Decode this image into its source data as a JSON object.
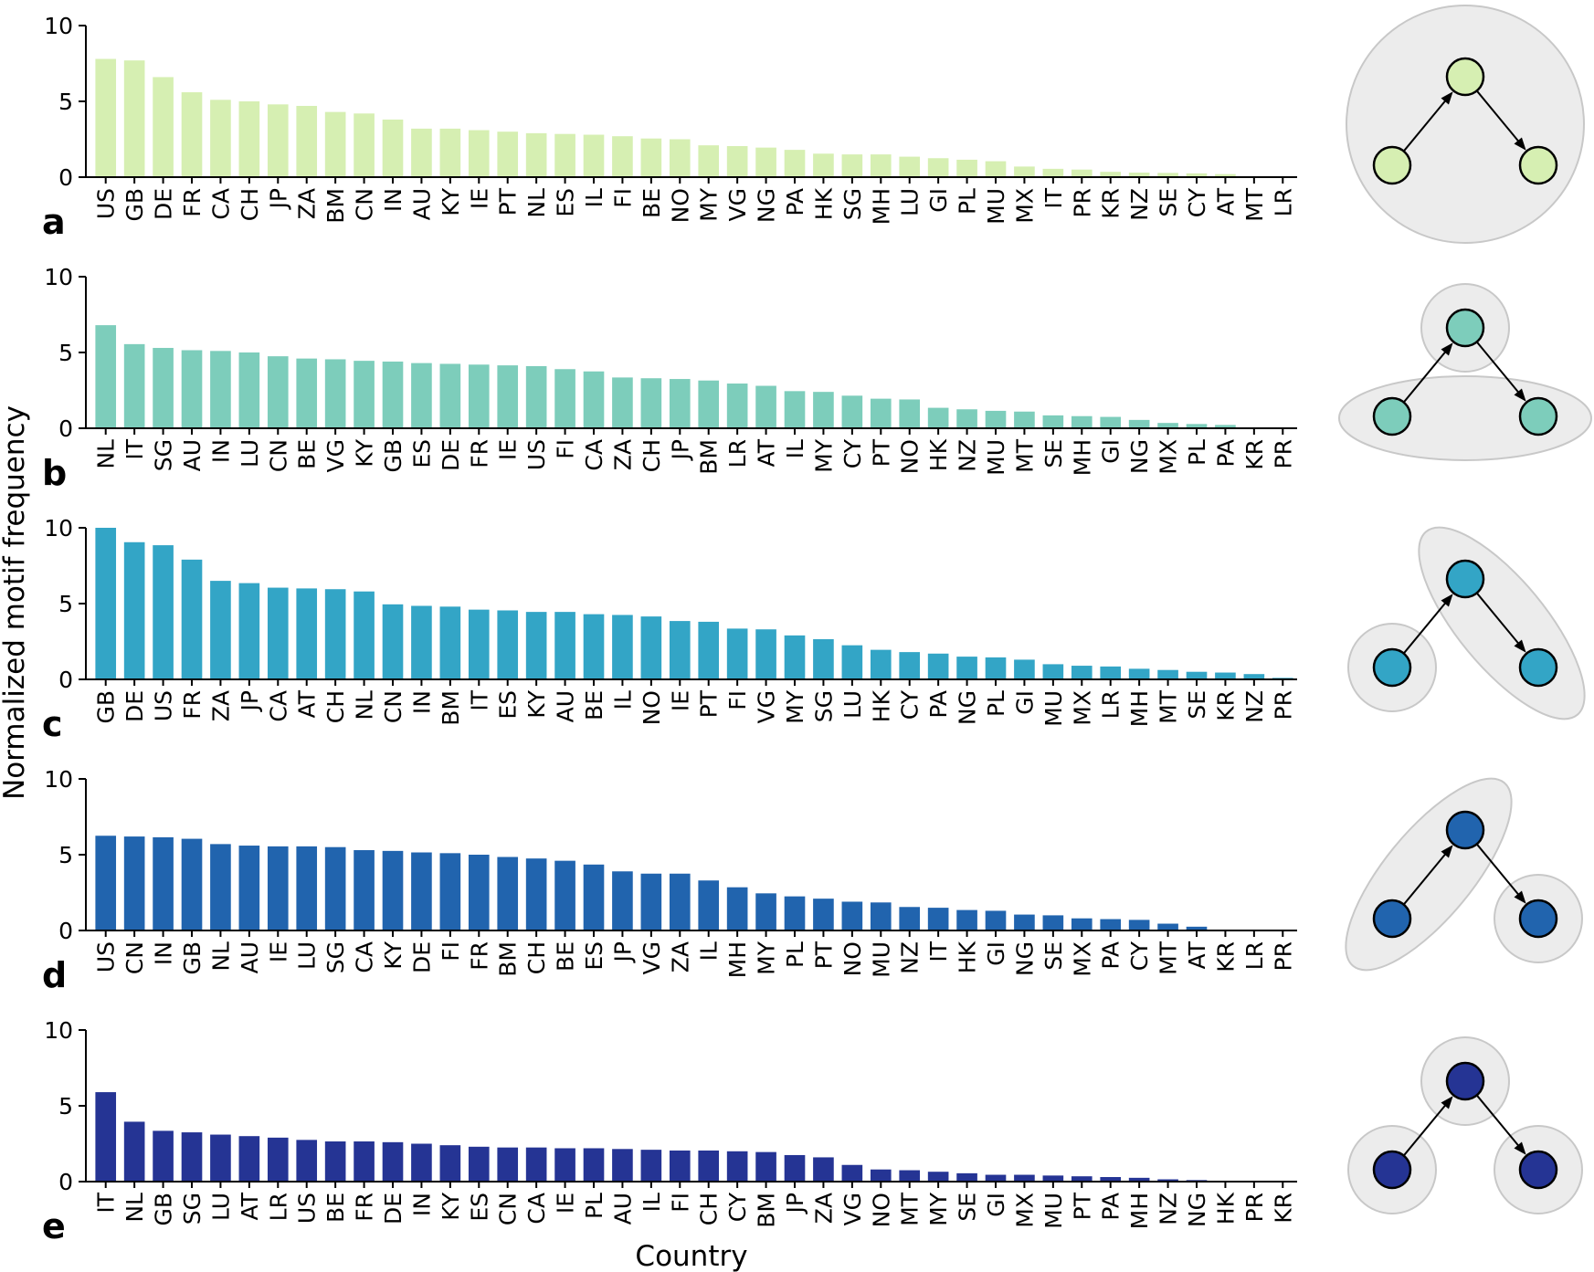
{
  "figure": {
    "ylabel": "Normalized motif frequency",
    "xlabel": "Country"
  },
  "chart_data": [
    {
      "type": "bar",
      "panel": "a",
      "color": "#d6efb2",
      "motif": "star-single-group",
      "ylim": [
        0,
        10
      ],
      "yticks": [
        "0",
        "5",
        "10"
      ],
      "categories": [
        "US",
        "GB",
        "DE",
        "FR",
        "CA",
        "CH",
        "JP",
        "ZA",
        "BM",
        "CN",
        "IN",
        "AU",
        "KY",
        "IE",
        "PT",
        "NL",
        "ES",
        "IL",
        "FI",
        "BE",
        "NO",
        "MY",
        "VG",
        "NG",
        "PA",
        "HK",
        "SG",
        "MH",
        "LU",
        "GI",
        "PL",
        "MU",
        "MX",
        "IT",
        "PR",
        "KR",
        "NZ",
        "SE",
        "CY",
        "AT",
        "MT",
        "LR"
      ],
      "values": [
        7.8,
        7.7,
        6.6,
        5.6,
        5.1,
        5.0,
        4.8,
        4.7,
        4.3,
        4.2,
        3.8,
        3.2,
        3.2,
        3.1,
        3.0,
        2.9,
        2.85,
        2.8,
        2.7,
        2.55,
        2.5,
        2.1,
        2.05,
        1.95,
        1.8,
        1.55,
        1.5,
        1.5,
        1.35,
        1.25,
        1.15,
        1.05,
        0.7,
        0.55,
        0.5,
        0.35,
        0.3,
        0.28,
        0.25,
        0.2,
        0.05,
        0.0
      ]
    },
    {
      "type": "bar",
      "panel": "b",
      "color": "#7dcdbb",
      "motif": "apex-separate-base-together",
      "ylim": [
        0,
        10
      ],
      "yticks": [
        "0",
        "5",
        "10"
      ],
      "categories": [
        "NL",
        "IT",
        "SG",
        "AU",
        "IN",
        "LU",
        "CN",
        "BE",
        "VG",
        "KY",
        "GB",
        "ES",
        "DE",
        "FR",
        "IE",
        "US",
        "FI",
        "CA",
        "ZA",
        "CH",
        "JP",
        "BM",
        "LR",
        "AT",
        "IL",
        "MY",
        "CY",
        "PT",
        "NO",
        "HK",
        "NZ",
        "MU",
        "MT",
        "SE",
        "MH",
        "GI",
        "NG",
        "MX",
        "PL",
        "PA",
        "KR",
        "PR"
      ],
      "values": [
        6.8,
        5.55,
        5.3,
        5.15,
        5.1,
        5.0,
        4.75,
        4.6,
        4.55,
        4.45,
        4.4,
        4.3,
        4.25,
        4.2,
        4.15,
        4.1,
        3.9,
        3.75,
        3.35,
        3.3,
        3.25,
        3.15,
        2.95,
        2.8,
        2.45,
        2.4,
        2.15,
        1.95,
        1.9,
        1.35,
        1.25,
        1.15,
        1.1,
        0.85,
        0.8,
        0.75,
        0.55,
        0.35,
        0.28,
        0.22,
        0.0,
        0.0
      ]
    },
    {
      "type": "bar",
      "panel": "c",
      "color": "#33a5c6",
      "motif": "source-separate-apex-target-together",
      "ylim": [
        0,
        10
      ],
      "yticks": [
        "0",
        "5",
        "10"
      ],
      "categories": [
        "GB",
        "DE",
        "US",
        "FR",
        "ZA",
        "JP",
        "CA",
        "AT",
        "CH",
        "NL",
        "CN",
        "IN",
        "BM",
        "IT",
        "ES",
        "KY",
        "AU",
        "BE",
        "IL",
        "NO",
        "IE",
        "PT",
        "FI",
        "VG",
        "MY",
        "SG",
        "LU",
        "HK",
        "CY",
        "PA",
        "NG",
        "PL",
        "GI",
        "MU",
        "MX",
        "LR",
        "MH",
        "MT",
        "SE",
        "KR",
        "NZ",
        "PR"
      ],
      "values": [
        10.0,
        9.05,
        8.85,
        7.9,
        6.5,
        6.35,
        6.05,
        6.0,
        5.95,
        5.8,
        4.95,
        4.85,
        4.8,
        4.6,
        4.55,
        4.45,
        4.45,
        4.3,
        4.25,
        4.15,
        3.85,
        3.8,
        3.35,
        3.3,
        2.9,
        2.65,
        2.25,
        1.95,
        1.8,
        1.7,
        1.5,
        1.45,
        1.3,
        1.0,
        0.9,
        0.85,
        0.7,
        0.62,
        0.5,
        0.45,
        0.35,
        0.1
      ]
    },
    {
      "type": "bar",
      "panel": "d",
      "color": "#2164ae",
      "motif": "source-apex-together-target-separate",
      "ylim": [
        0,
        10
      ],
      "yticks": [
        "0",
        "5",
        "10"
      ],
      "categories": [
        "US",
        "CN",
        "IN",
        "GB",
        "NL",
        "AU",
        "IE",
        "LU",
        "SG",
        "CA",
        "KY",
        "DE",
        "FI",
        "FR",
        "BM",
        "CH",
        "BE",
        "ES",
        "JP",
        "VG",
        "ZA",
        "IL",
        "MH",
        "MY",
        "PL",
        "PT",
        "NO",
        "MU",
        "NZ",
        "IT",
        "HK",
        "GI",
        "NG",
        "SE",
        "MX",
        "PA",
        "CY",
        "MT",
        "AT",
        "KR",
        "LR",
        "PR"
      ],
      "values": [
        6.25,
        6.2,
        6.15,
        6.05,
        5.7,
        5.6,
        5.55,
        5.55,
        5.5,
        5.3,
        5.25,
        5.15,
        5.1,
        5.0,
        4.85,
        4.75,
        4.6,
        4.35,
        3.9,
        3.75,
        3.75,
        3.3,
        2.85,
        2.45,
        2.25,
        2.1,
        1.9,
        1.85,
        1.55,
        1.5,
        1.35,
        1.3,
        1.05,
        1.0,
        0.8,
        0.75,
        0.7,
        0.45,
        0.25,
        0.0,
        0.0,
        0.0
      ]
    },
    {
      "type": "bar",
      "panel": "e",
      "color": "#253494",
      "motif": "all-separate",
      "ylim": [
        0,
        10
      ],
      "yticks": [
        "0",
        "5",
        "10"
      ],
      "categories": [
        "IT",
        "NL",
        "GB",
        "SG",
        "LU",
        "AT",
        "LR",
        "US",
        "BE",
        "FR",
        "DE",
        "IN",
        "KY",
        "ES",
        "CN",
        "CA",
        "IE",
        "PL",
        "AU",
        "IL",
        "FI",
        "CH",
        "CY",
        "BM",
        "JP",
        "ZA",
        "VG",
        "NO",
        "MT",
        "MY",
        "SE",
        "GI",
        "MX",
        "MU",
        "PT",
        "PA",
        "MH",
        "NZ",
        "NG",
        "HK",
        "PR",
        "KR"
      ],
      "values": [
        5.9,
        3.95,
        3.35,
        3.25,
        3.1,
        3.0,
        2.9,
        2.75,
        2.65,
        2.65,
        2.6,
        2.5,
        2.4,
        2.3,
        2.25,
        2.25,
        2.2,
        2.2,
        2.15,
        2.1,
        2.05,
        2.05,
        2.0,
        1.95,
        1.75,
        1.6,
        1.1,
        0.8,
        0.75,
        0.65,
        0.55,
        0.45,
        0.45,
        0.4,
        0.35,
        0.3,
        0.25,
        0.15,
        0.1,
        0.05,
        0.0,
        0.0
      ]
    }
  ]
}
